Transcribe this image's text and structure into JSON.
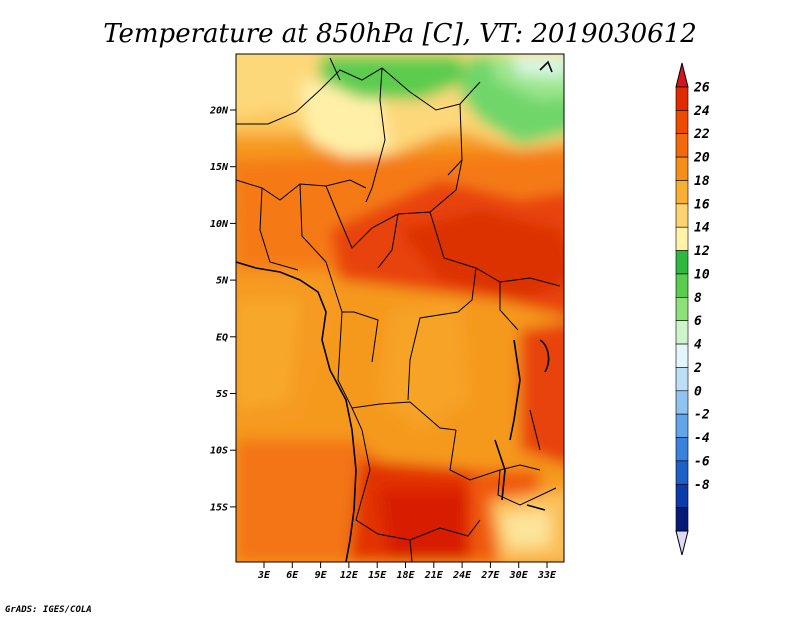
{
  "title": "Temperature at 850hPa [C], VT: 2019030612",
  "credit": "GrADS: IGES/COLA",
  "map": {
    "lat_ticks": [
      "20N",
      "15N",
      "10N",
      "5N",
      "EQ",
      "5S",
      "10S",
      "15S"
    ],
    "lon_ticks": [
      "3E",
      "6E",
      "9E",
      "12E",
      "15E",
      "18E",
      "21E",
      "24E",
      "27E",
      "30E",
      "33E"
    ]
  },
  "colorbar": {
    "labels": [
      "26",
      "24",
      "22",
      "20",
      "18",
      "16",
      "14",
      "12",
      "10",
      "8",
      "6",
      "4",
      "2",
      "0",
      "-2",
      "-4",
      "-6",
      "-8"
    ],
    "colors": [
      "#e12a00",
      "#f04a00",
      "#f26a0c",
      "#f58f1a",
      "#f7b034",
      "#fcd371",
      "#fff3a8",
      "#2db840",
      "#5ccc50",
      "#8fe07b",
      "#cdf5cb",
      "#e4f6fb",
      "#bcdff7",
      "#8fc4f0",
      "#62a5e8",
      "#3b82dc",
      "#1f5fc8",
      "#0c3aa8",
      "#061a78"
    ],
    "top_color": "#d4161a",
    "bottom_color": "#ddd9f2"
  }
}
